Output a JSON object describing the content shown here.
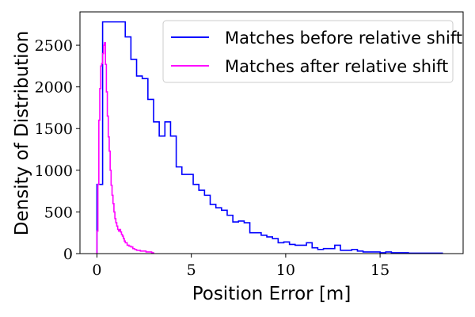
{
  "chart_data": {
    "type": "line",
    "title": "",
    "xlabel": "Position Error [m]",
    "ylabel": "Density of Distribution",
    "xlim": [
      -0.9,
      19.4
    ],
    "ylim": [
      0,
      2900
    ],
    "xticks": [
      0,
      5,
      10,
      15
    ],
    "yticks": [
      0,
      500,
      1000,
      1500,
      2000,
      2500
    ],
    "grid": false,
    "legend_position": "top-right",
    "series": [
      {
        "name": "Matches before relative shift",
        "color": "#0000ff",
        "step_edges": [
          0,
          0.3,
          0.6,
          0.9,
          1.2,
          1.5,
          1.8,
          2.1,
          2.4,
          2.7,
          3.0,
          3.3,
          3.6,
          3.9,
          4.2,
          4.5,
          4.8,
          5.1,
          5.4,
          5.7,
          6.0,
          6.3,
          6.6,
          6.9,
          7.2,
          7.5,
          7.8,
          8.1,
          8.4,
          8.7,
          9.0,
          9.3,
          9.6,
          9.9,
          10.2,
          10.5,
          10.8,
          11.1,
          11.4,
          11.7,
          12.0,
          12.3,
          12.6,
          12.9,
          13.2,
          13.5,
          13.8,
          14.1,
          14.4,
          14.7,
          15.0,
          15.3,
          15.6,
          15.9,
          16.2,
          16.5,
          16.8,
          17.1,
          17.4,
          17.7,
          18.0,
          18.3
        ],
        "step_values": [
          830,
          2780,
          2780,
          2780,
          2780,
          2600,
          2330,
          2130,
          2100,
          1850,
          1580,
          1410,
          1580,
          1410,
          1040,
          950,
          950,
          830,
          760,
          700,
          590,
          550,
          520,
          460,
          380,
          390,
          370,
          250,
          250,
          220,
          200,
          180,
          130,
          140,
          110,
          100,
          100,
          130,
          70,
          50,
          60,
          60,
          100,
          40,
          40,
          50,
          30,
          20,
          20,
          20,
          10,
          20,
          10,
          10,
          10,
          5,
          5,
          5,
          5,
          5,
          5
        ]
      },
      {
        "name": "Matches after relative shift",
        "color": "#ff00ff",
        "step_edges": [
          0.0,
          0.05,
          0.1,
          0.15,
          0.2,
          0.25,
          0.3,
          0.35,
          0.4,
          0.45,
          0.5,
          0.55,
          0.6,
          0.65,
          0.7,
          0.75,
          0.8,
          0.85,
          0.9,
          0.95,
          1.0,
          1.05,
          1.1,
          1.15,
          1.2,
          1.25,
          1.3,
          1.35,
          1.4,
          1.45,
          1.5,
          1.6,
          1.7,
          1.8,
          1.9,
          2.0,
          2.1,
          2.2,
          2.3,
          2.4,
          2.5,
          2.6,
          2.7,
          2.8,
          2.9,
          3.0
        ],
        "step_values": [
          270,
          830,
          1600,
          1980,
          2250,
          2280,
          2400,
          2500,
          2530,
          2270,
          1940,
          1650,
          1400,
          1230,
          1000,
          820,
          700,
          600,
          500,
          420,
          370,
          330,
          290,
          270,
          290,
          260,
          230,
          210,
          180,
          150,
          130,
          100,
          90,
          80,
          60,
          50,
          40,
          40,
          30,
          30,
          30,
          20,
          20,
          20,
          10
        ]
      }
    ]
  }
}
